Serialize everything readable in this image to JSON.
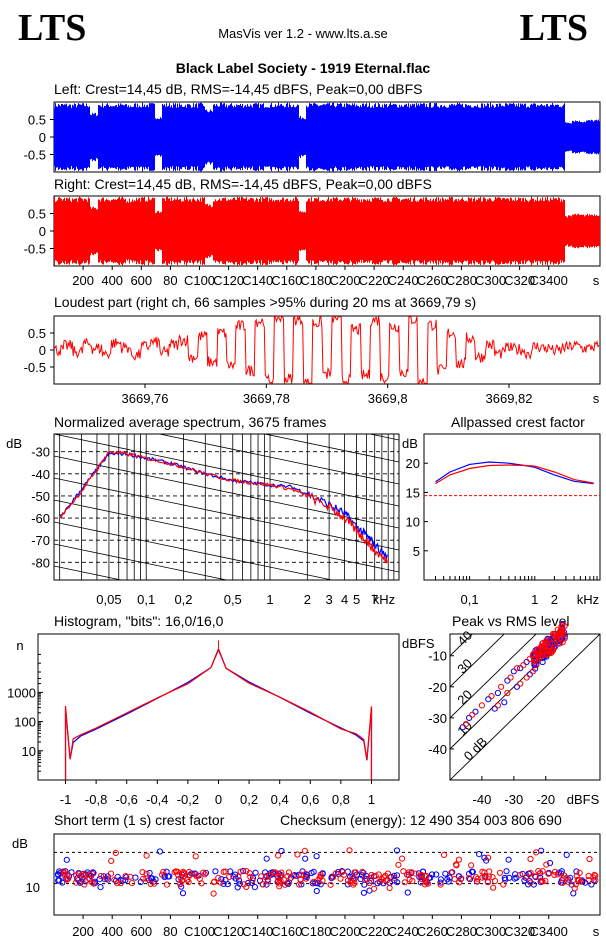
{
  "header": {
    "logo_left": "LTS",
    "logo_right": "LTS",
    "app_title": "MasVis ver 1.2 - www.lts.a.se",
    "track_title": "Black Label Society - 1919 Eternal.flac",
    "checksum": "Checksum (energy):  12 490 354 003 806 690"
  },
  "colors": {
    "left": "#0000ff",
    "right": "#ff0000",
    "grid": "#000000"
  },
  "chart_data": [
    {
      "id": "left-waveform",
      "type": "area",
      "title": "Left: Crest=14,45 dB, RMS=-14,45 dBFS, Peak=0,00 dBFS",
      "ylim": [
        -1,
        1
      ],
      "yticks": [
        "0.5",
        "0",
        "-0.5"
      ],
      "envelope": [
        0.98,
        0.98,
        0.97,
        0.98,
        0.98,
        0.7,
        0.98,
        0.98,
        0.97,
        0.98,
        0.95,
        0.98,
        0.98,
        0.98,
        0.6,
        0.98,
        0.98,
        0.97,
        0.98,
        0.98,
        0.98,
        0.8,
        0.98,
        0.98,
        0.97,
        0.98,
        0.98,
        0.98,
        0.98,
        0.98,
        0.98,
        0.98,
        0.98,
        0.98,
        0.6,
        0.98,
        0.98,
        0.98,
        0.98,
        0.98,
        0.98,
        0.98,
        0.97,
        0.98,
        0.98,
        0.98,
        0.98,
        0.98,
        0.98,
        0.98,
        0.98,
        0.98,
        0.98,
        0.98,
        0.98,
        0.98,
        0.98,
        0.98,
        0.98,
        0.98,
        0.98,
        0.98,
        0.98,
        0.98,
        0.98,
        0.98,
        0.98,
        0.98,
        0.98,
        0.98,
        0.98,
        0.45,
        0.5,
        0.48,
        0.5,
        0.5
      ]
    },
    {
      "id": "right-waveform",
      "type": "area",
      "title": "Right: Crest=14,45 dB, RMS=-14,45 dBFS, Peak=0,00 dBFS",
      "xlabel": "s",
      "xticks": [
        "200",
        "400",
        "600",
        "800",
        "1000",
        "1200",
        "1400",
        "1600",
        "1800",
        "2000",
        "2200",
        "2400",
        "2600",
        "2800",
        "3000",
        "3200",
        "3400"
      ],
      "tick_labels_shown": [
        "200",
        "400",
        "600",
        "80",
        "C100",
        "C120",
        "C140",
        "C160",
        "C180",
        "C200",
        "C220",
        "C240",
        "C260",
        "C280",
        "C300",
        "C320",
        "C3400"
      ],
      "ylim": [
        -1,
        1
      ],
      "yticks": [
        "0.5",
        "0",
        "-0.5"
      ],
      "envelope": [
        0.98,
        0.98,
        0.97,
        0.98,
        0.98,
        0.7,
        0.98,
        0.98,
        0.97,
        0.98,
        0.95,
        0.98,
        0.98,
        0.98,
        0.6,
        0.98,
        0.98,
        0.97,
        0.98,
        0.98,
        0.98,
        0.8,
        0.98,
        0.98,
        0.97,
        0.98,
        0.98,
        0.98,
        0.98,
        0.98,
        0.98,
        0.98,
        0.98,
        0.98,
        0.6,
        0.98,
        0.98,
        0.98,
        0.98,
        0.98,
        0.98,
        0.98,
        0.97,
        0.98,
        0.98,
        0.98,
        0.98,
        0.98,
        0.98,
        0.98,
        0.98,
        0.98,
        0.98,
        0.98,
        0.98,
        0.98,
        0.98,
        0.98,
        0.98,
        0.98,
        0.98,
        0.98,
        0.98,
        0.98,
        0.98,
        0.98,
        0.98,
        0.98,
        0.98,
        0.98,
        0.98,
        0.45,
        0.5,
        0.48,
        0.5,
        0.5
      ]
    },
    {
      "id": "loudest-part",
      "type": "line",
      "title": "Loudest part (right ch, 66 samples >95% during 20 ms at 3669,79 s)",
      "xlabel": "s",
      "xlim": [
        3669.745,
        3669.835
      ],
      "xticks": [
        3669.76,
        3669.78,
        3669.8,
        3669.82
      ],
      "xtick_labels": [
        "3669,76",
        "3669,78",
        "3669,8",
        "3669,82"
      ],
      "ylim": [
        -1,
        1
      ],
      "yticks": [
        "0.5",
        "0",
        "-0.5"
      ],
      "series": [
        {
          "values": [
            0.0,
            0.12,
            -0.05,
            0.18,
            0.05,
            -0.1,
            0.2,
            0.08,
            -0.15,
            0.1,
            0.22,
            -0.08,
            0.15,
            0.3,
            -0.2,
            0.4,
            -0.35,
            0.5,
            -0.45,
            0.7,
            -0.6,
            0.85,
            -0.9,
            0.95,
            -0.85,
            0.9,
            -0.98,
            0.8,
            -0.7,
            0.95,
            -0.9,
            0.6,
            -0.75,
            0.88,
            -0.8,
            0.7,
            -0.65,
            0.9,
            -0.95,
            0.75,
            -0.6,
            0.5,
            -0.4,
            0.35,
            -0.2,
            0.15,
            -0.1,
            0.05,
            0.02,
            -0.08,
            0.1,
            0.05,
            -0.02,
            0.08,
            0.12,
            0.05,
            0.1
          ]
        }
      ]
    },
    {
      "id": "avg-spectrum",
      "type": "line",
      "title": "Normalized average spectrum, 3675 frames",
      "xlabel": "kHz",
      "ylabel": "dB",
      "xscale": "log",
      "xticks": [
        0.05,
        0.1,
        0.2,
        0.5,
        1,
        2,
        3,
        4,
        5,
        7
      ],
      "xtick_labels": [
        "0,05",
        "0,1",
        "0,2",
        "0,5",
        "1",
        "2",
        "3",
        "4",
        "5",
        "7"
      ],
      "ylim": [
        -88,
        -22
      ],
      "yticks": [
        -30,
        -40,
        -50,
        -60,
        -70,
        -80
      ],
      "series": [
        {
          "name": "Left",
          "x": [
            0.02,
            0.03,
            0.04,
            0.05,
            0.07,
            0.1,
            0.15,
            0.2,
            0.3,
            0.5,
            0.7,
            1,
            1.5,
            2,
            3,
            4,
            5,
            6,
            7,
            9
          ],
          "values": [
            -60,
            -47,
            -38,
            -31,
            -31,
            -33,
            -35,
            -37,
            -40,
            -43,
            -44,
            -45,
            -46,
            -49,
            -54,
            -58,
            -64,
            -68,
            -72,
            -78
          ]
        },
        {
          "name": "Right",
          "x": [
            0.02,
            0.03,
            0.04,
            0.05,
            0.07,
            0.1,
            0.15,
            0.2,
            0.3,
            0.5,
            0.7,
            1,
            1.5,
            2,
            3,
            4,
            5,
            6,
            7,
            9
          ],
          "values": [
            -60,
            -48,
            -38,
            -30,
            -31,
            -33,
            -35,
            -37,
            -40,
            -43,
            -44,
            -45,
            -47,
            -50,
            -55,
            -60,
            -66,
            -70,
            -75,
            -80
          ]
        }
      ]
    },
    {
      "id": "allpassed-crest",
      "type": "line",
      "title": "Allpassed crest factor",
      "xlabel": "kHz",
      "ylabel": "dB",
      "xscale": "log",
      "xticks": [
        0.1,
        1,
        2
      ],
      "xtick_labels": [
        "0,1",
        "1",
        "2"
      ],
      "ylim": [
        0,
        25
      ],
      "yticks": [
        20,
        15,
        10,
        5
      ],
      "reference": 14.45,
      "series": [
        {
          "name": "Left",
          "x": [
            0.03,
            0.05,
            0.1,
            0.2,
            0.4,
            0.7,
            1,
            2,
            4,
            8
          ],
          "values": [
            16.8,
            18.5,
            19.8,
            20.2,
            20.0,
            19.6,
            19.3,
            18.0,
            16.9,
            16.5
          ]
        },
        {
          "name": "Right",
          "x": [
            0.03,
            0.05,
            0.1,
            0.2,
            0.4,
            0.7,
            1,
            2,
            4,
            8
          ],
          "values": [
            16.5,
            18.0,
            19.1,
            19.6,
            19.7,
            19.6,
            19.5,
            18.5,
            17.2,
            16.6
          ]
        }
      ]
    },
    {
      "id": "histogram",
      "type": "line",
      "title": "Histogram, \"bits\": 16,0/16,0",
      "ylabel": "n",
      "yscale": "log",
      "xticks": [
        -1,
        -0.8,
        -0.6,
        -0.4,
        -0.2,
        0,
        0.2,
        0.4,
        0.6,
        0.8,
        1
      ],
      "xtick_labels": [
        "-1",
        "-0,8",
        "-0,6",
        "-0,4",
        "-0,2",
        "0",
        "0,2",
        "0,4",
        "0,6",
        "0,8",
        "1"
      ],
      "yticks": [
        "10",
        "100",
        "1000"
      ],
      "ylim": [
        1,
        100000
      ],
      "series": [
        {
          "name": "Left",
          "x": [
            -1,
            -0.97,
            -0.95,
            -0.9,
            -0.8,
            -0.6,
            -0.4,
            -0.2,
            -0.05,
            0,
            0.05,
            0.2,
            0.4,
            0.6,
            0.8,
            0.9,
            0.95,
            0.97,
            1
          ],
          "values": [
            300,
            5,
            20,
            35,
            60,
            200,
            650,
            2200,
            7000,
            30000,
            7000,
            2200,
            650,
            200,
            60,
            35,
            20,
            5,
            300
          ]
        },
        {
          "name": "Right",
          "x": [
            -1,
            -0.97,
            -0.95,
            -0.9,
            -0.8,
            -0.6,
            -0.4,
            -0.2,
            -0.05,
            0,
            0.05,
            0.2,
            0.4,
            0.6,
            0.8,
            0.9,
            0.95,
            0.97,
            1
          ],
          "values": [
            320,
            5,
            25,
            35,
            60,
            200,
            650,
            2200,
            7000,
            30000,
            7000,
            2200,
            650,
            200,
            60,
            35,
            25,
            5,
            320
          ]
        }
      ]
    },
    {
      "id": "peak-vs-rms",
      "type": "scatter",
      "title": "Peak vs RMS level",
      "xlabel": "dBFS",
      "ylabel": "dBFS",
      "xlim": [
        -50,
        -3
      ],
      "ylim": [
        -50,
        -3
      ],
      "xticks": [
        -40,
        -30,
        -20
      ],
      "yticks": [
        -10,
        -20,
        -30,
        -40
      ],
      "diagonal_labels": [
        "40",
        "30",
        "20",
        "10",
        "0 dB"
      ],
      "series": [
        {
          "name": "Left",
          "points": [
            [
              -46,
              -33
            ],
            [
              -44,
              -30
            ],
            [
              -42,
              -28
            ],
            [
              -38,
              -24
            ],
            [
              -35,
              -22
            ],
            [
              -32,
              -18
            ],
            [
              -30,
              -15
            ],
            [
              -28,
              -14
            ],
            [
              -26,
              -12
            ],
            [
              -24,
              -10
            ],
            [
              -22,
              -8
            ],
            [
              -20,
              -6
            ],
            [
              -18,
              -5
            ],
            [
              -36,
              -27
            ],
            [
              -33,
              -25
            ],
            [
              -29,
              -20
            ],
            [
              -25,
              -16
            ],
            [
              -21,
              -12
            ],
            [
              -19,
              -9
            ],
            [
              -17,
              -7
            ]
          ]
        },
        {
          "name": "Right",
          "points": [
            [
              -45,
              -32
            ],
            [
              -43,
              -29
            ],
            [
              -40,
              -26
            ],
            [
              -37,
              -23
            ],
            [
              -34,
              -20
            ],
            [
              -31,
              -17
            ],
            [
              -29,
              -14
            ],
            [
              -27,
              -13
            ],
            [
              -25,
              -11
            ],
            [
              -23,
              -9
            ],
            [
              -21,
              -7
            ],
            [
              -19,
              -5
            ],
            [
              -17,
              -4
            ],
            [
              -35,
              -26
            ],
            [
              -32,
              -22
            ],
            [
              -28,
              -19
            ],
            [
              -24,
              -15
            ],
            [
              -22,
              -11
            ],
            [
              -20,
              -8
            ],
            [
              -18,
              -6
            ],
            [
              -26,
              -17
            ],
            [
              -23,
              -13
            ]
          ]
        }
      ]
    },
    {
      "id": "short-term-crest",
      "type": "scatter",
      "title": "Short term (1 s) crest factor",
      "xlabel": "s",
      "ylabel": "dB",
      "xticks": [
        "200",
        "400",
        "600",
        "800",
        "1000",
        "1200",
        "1400",
        "1600",
        "1800",
        "2000",
        "2200",
        "2400",
        "2600",
        "2800",
        "3000",
        "3200",
        "3400"
      ],
      "tick_labels_shown": [
        "200",
        "400",
        "600",
        "80",
        "C100",
        "C120",
        "C140",
        "C160",
        "C180",
        "C200",
        "C220",
        "C240",
        "C260",
        "C280",
        "C300",
        "C320",
        "C3400"
      ],
      "yscale": "log",
      "yticks": [
        "10"
      ],
      "ylim": [
        5,
        30
      ],
      "reference_lines": [
        10,
        20
      ]
    }
  ]
}
